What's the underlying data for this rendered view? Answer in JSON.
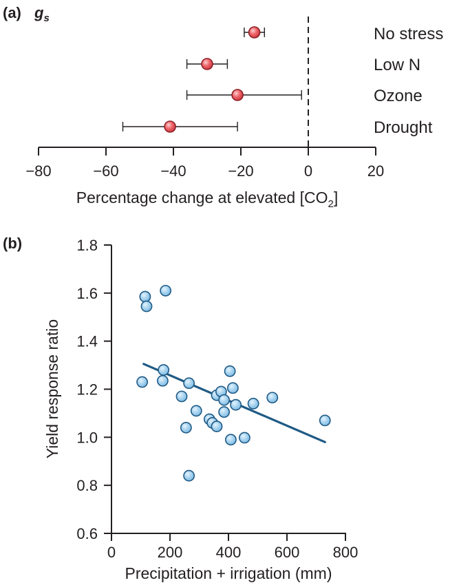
{
  "chart_data": [
    {
      "type": "scatter",
      "subtype": "forest-plot",
      "panel_label": "(a)",
      "title": "g",
      "title_subscript": "s",
      "xlabel": "Percentage change at elevated [CO",
      "xlabel_subscript": "2",
      "xlabel_suffix": "]",
      "xlim": [
        -80,
        20
      ],
      "xticks": [
        -80,
        -60,
        -40,
        -20,
        0,
        20
      ],
      "xtick_labels": [
        "−80",
        "−60",
        "−40",
        "−20",
        "0",
        "20"
      ],
      "reference_line": 0,
      "categories": [
        "No stress",
        "Low N",
        "Ozone",
        "Drought"
      ],
      "values": [
        -16,
        -30,
        -21,
        -41
      ],
      "ci_low": [
        -19,
        -36,
        -36,
        -55
      ],
      "ci_high": [
        -13,
        -24,
        -2,
        -21
      ],
      "marker_color": "#e8474f"
    },
    {
      "type": "scatter",
      "panel_label": "(b)",
      "xlabel": "Precipitation + irrigation (mm)",
      "ylabel": "Yield response ratio",
      "xlim": [
        0,
        800
      ],
      "ylim": [
        0.6,
        1.8
      ],
      "xticks": [
        0,
        200,
        400,
        600,
        800
      ],
      "xtick_labels": [
        "0",
        "200",
        "400",
        "600",
        "800"
      ],
      "yticks": [
        0.6,
        0.8,
        1.0,
        1.2,
        1.4,
        1.6,
        1.8
      ],
      "ytick_labels": [
        "0.6",
        "0.8",
        "1.0",
        "1.2",
        "1.4",
        "1.6",
        "1.8"
      ],
      "points": [
        {
          "x": 115,
          "y": 1.585
        },
        {
          "x": 120,
          "y": 1.545
        },
        {
          "x": 185,
          "y": 1.61
        },
        {
          "x": 105,
          "y": 1.23
        },
        {
          "x": 178,
          "y": 1.28
        },
        {
          "x": 175,
          "y": 1.235
        },
        {
          "x": 265,
          "y": 1.225
        },
        {
          "x": 240,
          "y": 1.17
        },
        {
          "x": 290,
          "y": 1.11
        },
        {
          "x": 255,
          "y": 1.04
        },
        {
          "x": 265,
          "y": 0.84
        },
        {
          "x": 335,
          "y": 1.075
        },
        {
          "x": 345,
          "y": 1.06
        },
        {
          "x": 360,
          "y": 1.045
        },
        {
          "x": 360,
          "y": 1.175
        },
        {
          "x": 375,
          "y": 1.19
        },
        {
          "x": 385,
          "y": 1.155
        },
        {
          "x": 385,
          "y": 1.105
        },
        {
          "x": 405,
          "y": 1.275
        },
        {
          "x": 415,
          "y": 1.205
        },
        {
          "x": 425,
          "y": 1.135
        },
        {
          "x": 408,
          "y": 0.99
        },
        {
          "x": 455,
          "y": 0.998
        },
        {
          "x": 485,
          "y": 1.14
        },
        {
          "x": 550,
          "y": 1.165
        },
        {
          "x": 730,
          "y": 1.07
        }
      ],
      "trendline": {
        "x": [
          110,
          730
        ],
        "y": [
          1.305,
          0.98
        ]
      },
      "marker_color": "#a9d4f0",
      "line_color": "#1f5a85"
    }
  ]
}
